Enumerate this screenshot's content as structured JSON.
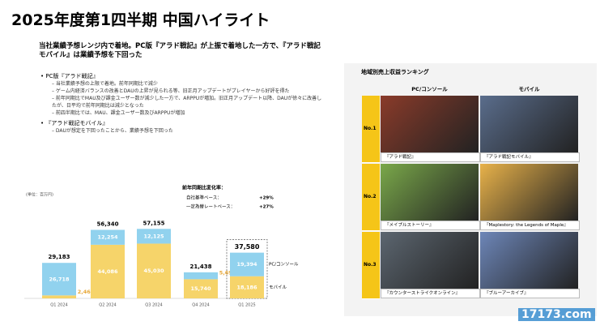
{
  "header": {
    "title": "2025年度第1四半期 中国ハイライト",
    "subtitle": "当社業績予想レンジ内で着地。PC版『アラド戦記』が上振で着地した一方で、『アラド戦記モバイル』は業績予想を下回った"
  },
  "bullets": [
    {
      "title": "PC版『アラド戦記』",
      "items": [
        "当社業績予想の上限で着地。前年同期比で減少",
        "ゲーム内経済バランスの改善とDAUの上昇が見られる等、旧正月アップデートがプレイヤーから好評を得た",
        "前年同期比でMAU及び課金ユーザー数が減少した一方で、ARPPUが増加。旧正月アップデート以降、DAUが徐々に改善したが、日平均で前年同期比は減少となった",
        "前四半期比では、MAU、課金ユーザー数及びARPPUが増加"
      ]
    },
    {
      "title": "『アラド戦記モバイル』",
      "items": [
        "DAUが想定を下回ったことから、業績予想を下回った"
      ]
    }
  ],
  "chart_data": {
    "type": "stacked_bar",
    "unit": "(単位：百万円)",
    "categories": [
      "Q1 2024",
      "Q2 2024",
      "Q3 2024",
      "Q4 2024",
      "Q1 2025"
    ],
    "series": [
      {
        "name": "モバイル",
        "color": "#f6d46a",
        "values": [
          2465,
          44086,
          45030,
          15740,
          18186
        ],
        "value_labels": [
          "2,465",
          "44,086",
          "45,030",
          "15,740",
          "18,186"
        ]
      },
      {
        "name": "PC/コンソール",
        "color": "#91d2ee",
        "values": [
          26718,
          12254,
          12125,
          5698,
          19394
        ],
        "value_labels": [
          "26,718",
          "12,254",
          "12,125",
          "5,698",
          "19,394"
        ]
      }
    ],
    "total_labels": [
      "29,183",
      "56,340",
      "57,155",
      "21,438",
      "37,580"
    ],
    "ylim": [
      0,
      60000
    ],
    "annotation": {
      "title": "前年同期比変化率：",
      "rows": [
        [
          "自社基準ベース：",
          "+29%"
        ],
        [
          "一定為替レートベース：",
          "+27%"
        ]
      ]
    }
  },
  "ranking": {
    "title": "地域別売上収益ランキング",
    "columns": [
      "PC/コンソール",
      "モバイル"
    ],
    "rows": [
      {
        "rank": "No.1",
        "titles": [
          "『アラド戦記』",
          "『アラド戦記モバイル』"
        ]
      },
      {
        "rank": "No.2",
        "titles": [
          "『メイプルストーリー』",
          "『Maplestory: the Legends of Maple』"
        ]
      },
      {
        "rank": "No.3",
        "titles": [
          "『カウンターストライクオンライン』",
          "『ブルーアーカイブ』"
        ]
      }
    ]
  },
  "watermark": "17173.com"
}
